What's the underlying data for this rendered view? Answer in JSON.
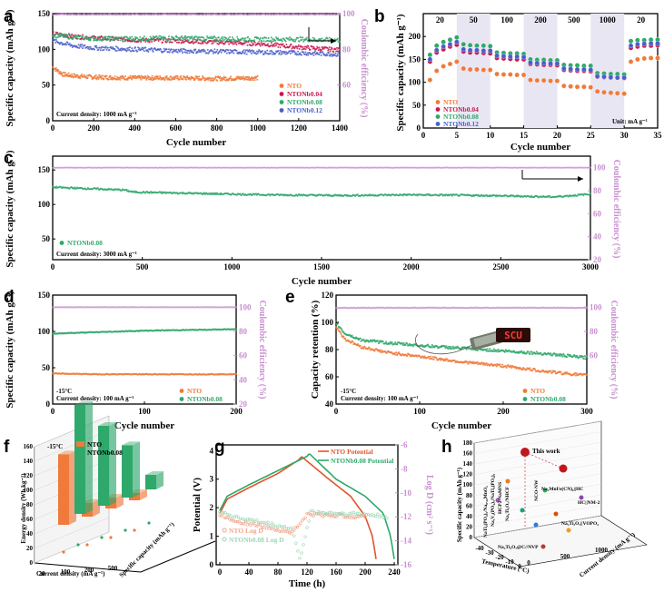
{
  "colors": {
    "nto": "#f07a3a",
    "nb004": "#c8174e",
    "nb008": "#2fa86b",
    "nb012": "#4a5fc9",
    "ce": "#c98fd1",
    "band": "#e9e6f3"
  },
  "panels": {
    "a": {
      "label": "a",
      "xlabel": "Cycle number",
      "ylabel": "Specific capacity (mAh g⁻¹)",
      "y2label": "Coulombic efficiency (%)",
      "note": "Current density: 1000 mA g⁻¹",
      "legend": [
        "NTO",
        "NTONb0.04",
        "NTONb0.08",
        "NTONb0.12"
      ]
    },
    "b": {
      "label": "b",
      "xlabel": "Cycle number",
      "ylabel": "Specific capacity (mAh g⁻¹)",
      "unit_note": "Unit: mA g⁻¹",
      "legend": [
        "NTO",
        "NTONb0.04",
        "NTONb0.08",
        "NTONb0.12"
      ]
    },
    "c": {
      "label": "c",
      "xlabel": "Cycle number",
      "ylabel": "Specific capacity (mAh g⁻¹)",
      "y2label": "Coulombic efficiency (%)",
      "note": "Current density: 3000 mA g⁻¹",
      "legend": [
        "NTONb0.08"
      ]
    },
    "d": {
      "label": "d",
      "xlabel": "Cycle number",
      "ylabel": "Specific capacity (mAh g⁻¹)",
      "y2label": "Coulombic efficiency (%)",
      "temp": "-15°C",
      "note": "Current density: 100 mA g⁻¹",
      "legend": [
        "NTO",
        "NTONb0.08"
      ]
    },
    "e": {
      "label": "e",
      "xlabel": "Cycle number",
      "ylabel": "Capacity retention (%)",
      "y2label": "Coulombic efficiency (%)",
      "temp": "-15°C",
      "note": "Current density: 100 mA g⁻¹",
      "led_text": "SCU",
      "legend": [
        "NTO",
        "NTONb0.08"
      ]
    },
    "f": {
      "label": "f",
      "zlabel": "Energy density (Wh kg⁻¹)",
      "xlabel": "Current density (mA g⁻¹)",
      "ylabel": "Specific capacity (mAh g⁻¹)",
      "temp": "-15°C",
      "legend": [
        "NTO",
        "NTONb0.08"
      ]
    },
    "g": {
      "label": "g",
      "xlabel": "Time (h)",
      "ylabel": "Potential (V)",
      "y2label": "Log D (cm² s⁻¹)",
      "legend": [
        "NTO Potential",
        "NTONb0.08 Potential",
        "NTO Log D",
        "NTONb0.08 Log D"
      ]
    },
    "h": {
      "label": "h",
      "zlabel": "Specific capacity (mAh g⁻¹)",
      "xlabel": "Temperature (°C)",
      "ylabel": "Current density (mA g⁻¹)",
      "this_work": "This work",
      "annotations": [
        "NaTi₂(PO₄)₃/Na₀.₄₄MnO₂",
        "Na₃V₂(PO₄)₃/NaTi₂(PO₄)₃",
        "Na₂Ti₃O₇@C//NVP",
        "HCP2-NaMNS",
        "Na₂Ti₃O₇/NHCF",
        "NCO-NW",
        "HC||NM-2",
        "Na₂Ti₃O₇||VOPO₄",
        "Na₂MnFe(CN)₆||HC"
      ]
    }
  },
  "chart_data": [
    {
      "type": "scatter",
      "panel": "a",
      "title": "",
      "xlabel": "Cycle number",
      "ylabel": "Specific capacity (mAh g⁻¹)",
      "y2label": "Coulombic efficiency (%)",
      "xlim": [
        0,
        1400
      ],
      "ylim": [
        0,
        150
      ],
      "y2lim": [
        40,
        100
      ],
      "xticks": [
        0,
        200,
        400,
        600,
        800,
        1000,
        1200,
        1400
      ],
      "yticks": [
        0,
        50,
        100,
        150
      ],
      "y2ticks": [
        60,
        80,
        100
      ],
      "series": [
        {
          "name": "NTO",
          "x": [
            0,
            50,
            100,
            200,
            400,
            600,
            800,
            1000
          ],
          "y": [
            75,
            65,
            63,
            61,
            60,
            60,
            59,
            60
          ]
        },
        {
          "name": "NTONb0.04",
          "x": [
            0,
            100,
            200,
            400,
            600,
            800,
            1000,
            1200,
            1400
          ],
          "y": [
            122,
            118,
            116,
            113,
            112,
            110,
            108,
            103,
            99
          ]
        },
        {
          "name": "NTONb0.08",
          "x": [
            0,
            100,
            200,
            400,
            600,
            800,
            1000,
            1200,
            1400
          ],
          "y": [
            120,
            117,
            115,
            115,
            116,
            115,
            114,
            114,
            113
          ]
        },
        {
          "name": "NTONb0.12",
          "x": [
            0,
            100,
            200,
            400,
            600,
            800,
            1000,
            1200,
            1400
          ],
          "y": [
            112,
            105,
            102,
            100,
            98,
            97,
            96,
            95,
            93
          ]
        },
        {
          "name": "Coulombic efficiency",
          "x": [
            0,
            200,
            400,
            600,
            800,
            1000,
            1200,
            1400
          ],
          "y": [
            99.5,
            99.5,
            99.5,
            99.5,
            99.5,
            99.5,
            99.5,
            99.5
          ]
        }
      ]
    },
    {
      "type": "scatter",
      "panel": "b",
      "title": "",
      "xlabel": "Cycle number",
      "ylabel": "Specific capacity (mAh g⁻¹)",
      "xlim": [
        0,
        35
      ],
      "ylim": [
        0,
        250
      ],
      "xticks": [
        0,
        5,
        10,
        15,
        20,
        25,
        30,
        35
      ],
      "yticks": [
        0,
        50,
        100,
        150,
        200
      ],
      "rate_labels": [
        "20",
        "50",
        "100",
        "200",
        "500",
        "1000",
        "20"
      ],
      "series": [
        {
          "name": "NTO",
          "x": [
            1,
            2,
            3,
            4,
            5,
            6,
            7,
            8,
            9,
            10,
            11,
            12,
            13,
            14,
            15,
            16,
            17,
            18,
            19,
            20,
            21,
            22,
            23,
            24,
            25,
            26,
            27,
            28,
            29,
            30,
            31,
            32,
            33,
            34,
            35
          ],
          "y": [
            105,
            125,
            135,
            140,
            145,
            130,
            128,
            128,
            127,
            127,
            118,
            117,
            117,
            116,
            116,
            105,
            104,
            104,
            103,
            103,
            92,
            91,
            90,
            90,
            89,
            80,
            78,
            77,
            76,
            75,
            145,
            150,
            152,
            153,
            153
          ]
        },
        {
          "name": "NTONb0.04",
          "x": [
            1,
            2,
            3,
            4,
            5,
            6,
            7,
            8,
            9,
            10,
            11,
            12,
            13,
            14,
            15,
            16,
            17,
            18,
            19,
            20,
            21,
            22,
            23,
            24,
            25,
            26,
            27,
            28,
            29,
            30,
            31,
            32,
            33,
            34,
            35
          ],
          "y": [
            145,
            165,
            172,
            178,
            182,
            167,
            165,
            165,
            164,
            163,
            153,
            152,
            151,
            150,
            150,
            140,
            139,
            138,
            138,
            137,
            127,
            126,
            125,
            125,
            124,
            112,
            111,
            110,
            110,
            109,
            175,
            178,
            180,
            180,
            181
          ]
        },
        {
          "name": "NTONb0.08",
          "x": [
            1,
            2,
            3,
            4,
            5,
            6,
            7,
            8,
            9,
            10,
            11,
            12,
            13,
            14,
            15,
            16,
            17,
            18,
            19,
            20,
            21,
            22,
            23,
            24,
            25,
            26,
            27,
            28,
            29,
            30,
            31,
            32,
            33,
            34,
            35
          ],
          "y": [
            160,
            180,
            188,
            193,
            198,
            183,
            181,
            180,
            180,
            179,
            165,
            164,
            163,
            163,
            162,
            150,
            149,
            149,
            148,
            148,
            138,
            137,
            137,
            136,
            136,
            120,
            119,
            118,
            118,
            117,
            190,
            192,
            192,
            193,
            193
          ]
        },
        {
          "name": "NTONb0.12",
          "x": [
            1,
            2,
            3,
            4,
            5,
            6,
            7,
            8,
            9,
            10,
            11,
            12,
            13,
            14,
            15,
            16,
            17,
            18,
            19,
            20,
            21,
            22,
            23,
            24,
            25,
            26,
            27,
            28,
            29,
            30,
            31,
            32,
            33,
            34,
            35
          ],
          "y": [
            150,
            170,
            178,
            183,
            188,
            172,
            170,
            170,
            169,
            169,
            158,
            157,
            156,
            156,
            155,
            143,
            142,
            142,
            141,
            141,
            130,
            129,
            128,
            128,
            127,
            113,
            112,
            111,
            110,
            110,
            180,
            183,
            184,
            185,
            185
          ]
        }
      ]
    },
    {
      "type": "scatter",
      "panel": "c",
      "title": "",
      "xlabel": "Cycle number",
      "ylabel": "Specific capacity (mAh g⁻¹)",
      "y2label": "Coulombic efficiency (%)",
      "xlim": [
        0,
        3000
      ],
      "ylim": [
        20,
        170
      ],
      "y2lim": [
        20,
        110
      ],
      "xticks": [
        0,
        500,
        1000,
        1500,
        2000,
        2500,
        3000
      ],
      "yticks": [
        50,
        100,
        150
      ],
      "y2ticks": [
        20,
        40,
        60,
        80,
        100
      ],
      "series": [
        {
          "name": "NTONb0.08",
          "x": [
            0,
            200,
            400,
            450,
            800,
            1200,
            1600,
            2000,
            2400,
            2800,
            3000
          ],
          "y": [
            125,
            123,
            121,
            118,
            116,
            114,
            113,
            114,
            113,
            111,
            115
          ]
        },
        {
          "name": "Coulombic efficiency",
          "x": [
            0,
            500,
            1000,
            1500,
            2000,
            2500,
            2900,
            3000
          ],
          "y": [
            100,
            100,
            100,
            100,
            100,
            100,
            100,
            100
          ]
        }
      ]
    },
    {
      "type": "scatter",
      "panel": "d",
      "title": "",
      "xlabel": "Cycle number",
      "ylabel": "Specific capacity (mAh g⁻¹)",
      "y2label": "Coulombic efficiency (%)",
      "xlim": [
        0,
        200
      ],
      "ylim": [
        0,
        150
      ],
      "y2lim": [
        20,
        110
      ],
      "xticks": [
        0,
        100,
        200
      ],
      "yticks": [
        0,
        50,
        100,
        150
      ],
      "y2ticks": [
        20,
        40,
        60,
        80,
        100
      ],
      "series": [
        {
          "name": "NTO",
          "x": [
            0,
            50,
            100,
            150,
            200
          ],
          "y": [
            42,
            41,
            41,
            41,
            41
          ]
        },
        {
          "name": "NTONb0.08",
          "x": [
            0,
            50,
            100,
            150,
            200
          ],
          "y": [
            97,
            99,
            101,
            102,
            103
          ]
        },
        {
          "name": "Coulombic efficiency",
          "x": [
            0,
            50,
            100,
            150,
            200
          ],
          "y": [
            100,
            100,
            100,
            100,
            100
          ]
        }
      ]
    },
    {
      "type": "scatter",
      "panel": "e",
      "title": "",
      "xlabel": "Cycle number",
      "ylabel": "Capacity retention (%)",
      "y2label": "Coulombic efficiency (%)",
      "xlim": [
        0,
        300
      ],
      "ylim": [
        40,
        120
      ],
      "y2lim": [
        20,
        110
      ],
      "xticks": [
        0,
        100,
        200,
        300
      ],
      "yticks": [
        40,
        60,
        80,
        100,
        120
      ],
      "y2ticks": [
        60,
        80,
        100
      ],
      "series": [
        {
          "name": "NTO",
          "x": [
            0,
            10,
            30,
            60,
            100,
            150,
            200,
            250,
            300
          ],
          "y": [
            97,
            88,
            82,
            78,
            75,
            71,
            68,
            64,
            61
          ]
        },
        {
          "name": "NTONb0.08",
          "x": [
            0,
            10,
            30,
            60,
            100,
            150,
            200,
            250,
            300
          ],
          "y": [
            100,
            92,
            87,
            85,
            83,
            81,
            79,
            77,
            74
          ]
        },
        {
          "name": "Coulombic efficiency",
          "x": [
            0,
            100,
            200,
            300
          ],
          "y": [
            99.5,
            99.5,
            99.5,
            99.5
          ]
        }
      ]
    },
    {
      "type": "bar",
      "panel": "f",
      "title": "",
      "zlabel": "Energy density (Wh kg⁻¹)",
      "xlabel": "Current density (mA g⁻¹)",
      "ylabel": "Specific capacity (mAh g⁻¹)",
      "categories": [
        "20",
        "100",
        "200",
        "500"
      ],
      "zticks": [
        0,
        20,
        40,
        60,
        80,
        100,
        120,
        140,
        160
      ],
      "yticks": [
        0,
        20,
        40,
        60,
        80
      ],
      "series": [
        {
          "name": "NTO",
          "values": [
            97,
            19,
            15,
            10
          ]
        },
        {
          "name": "NTONb0.08",
          "values": [
            150,
            110,
            72,
            20
          ]
        }
      ]
    },
    {
      "type": "line",
      "panel": "g",
      "title": "",
      "xlabel": "Time (h)",
      "ylabel": "Potential (V)",
      "y2label": "Log D (cm² s⁻¹)",
      "xlim": [
        -5,
        245
      ],
      "ylim": [
        0,
        4.2
      ],
      "y2lim": [
        -16,
        -6
      ],
      "xticks": [
        0,
        40,
        80,
        120,
        160,
        200,
        240
      ],
      "yticks": [
        0,
        1,
        2,
        3,
        4
      ],
      "y2ticks": [
        -16,
        -14,
        -12,
        -10,
        -8,
        -6
      ],
      "series": [
        {
          "name": "NTO Potential",
          "x": [
            0,
            10,
            40,
            80,
            110,
            112,
            150,
            180,
            200,
            210,
            215
          ],
          "y": [
            1.8,
            2.3,
            2.7,
            3.2,
            3.7,
            3.8,
            3.0,
            2.4,
            1.7,
            1.0,
            0.2
          ]
        },
        {
          "name": "NTONb0.08 Potential",
          "x": [
            0,
            10,
            40,
            80,
            120,
            123,
            160,
            200,
            225,
            235,
            240
          ],
          "y": [
            1.9,
            2.4,
            2.8,
            3.3,
            3.8,
            3.9,
            3.0,
            2.4,
            1.8,
            1.0,
            0.2
          ]
        },
        {
          "name": "NTO Log D",
          "x": [
            0,
            20,
            60,
            100,
            110,
            120,
            160,
            200
          ],
          "y": [
            -11.8,
            -12.3,
            -12.8,
            -13.3,
            -12.6,
            -11.8,
            -11.9,
            -12.0
          ]
        },
        {
          "name": "NTONb0.08 Log D",
          "x": [
            0,
            20,
            60,
            100,
            110,
            125,
            160,
            200,
            230
          ],
          "y": [
            -11.5,
            -12.0,
            -12.5,
            -13.0,
            -15.6,
            -11.6,
            -11.7,
            -11.8,
            -12.0
          ]
        }
      ]
    },
    {
      "type": "scatter",
      "panel": "h",
      "title": "",
      "zlabel": "Specific capacity (mAh g⁻¹)",
      "xlabel": "Temperature (°C)",
      "ylabel": "Current density (mA g⁻¹)",
      "zticks": [
        0,
        20,
        40,
        60,
        80,
        100,
        120,
        140,
        160,
        180
      ],
      "xticks": [
        -40,
        -30,
        -20,
        -10,
        0
      ],
      "yticks": [
        0,
        500,
        1000
      ],
      "points": [
        {
          "label": "This work",
          "temperature": -15,
          "capacity": 150
        },
        {
          "label": "HCP2-NaMNS"
        },
        {
          "label": "NaTi₂(PO₄)₃/Na₀.₄₄MnO₂"
        },
        {
          "label": "Na₃V₂(PO₄)₃/NaTi₂(PO₄)₃"
        },
        {
          "label": "Na₂Ti₃O₇/NHCF"
        },
        {
          "label": "NCO-NW"
        },
        {
          "label": "Na₂MnFe(CN)₆||HC"
        },
        {
          "label": "HC||NM-2"
        },
        {
          "label": "Na₂Ti₃O₇||VOPO₄"
        },
        {
          "label": "Na₂Ti₃O₇@C//NVP"
        }
      ]
    }
  ]
}
